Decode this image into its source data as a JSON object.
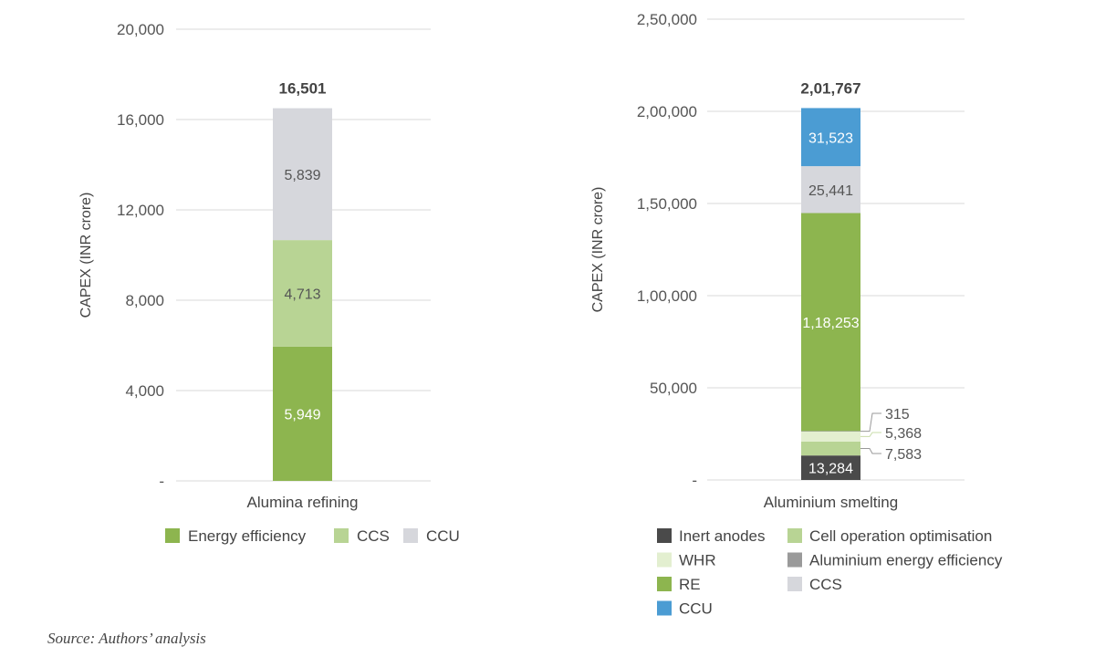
{
  "source": "Source: Authors’ analysis",
  "colors": {
    "energy_efficiency": "#8db54f",
    "ccs_left": "#b8d494",
    "ccu_left": "#d6d7dc",
    "inert_anodes": "#4a4a4a",
    "cell_operation_optimisation": "#b8d494",
    "whr": "#e3efd0",
    "aluminium_energy_efficiency": "#9a9a9a",
    "re": "#8db54f",
    "ccs_right": "#d6d7dc",
    "ccu_right": "#4b9cd3"
  },
  "chart_data": [
    {
      "type": "bar",
      "stacked": true,
      "ylabel": "CAPEX (INR crore)",
      "ylim": [
        0,
        20000
      ],
      "yticks": [
        "-",
        "4,000",
        "8,000",
        "12,000",
        "16,000",
        "20,000"
      ],
      "categories": [
        "Alumina refining"
      ],
      "total": "16,501",
      "series": [
        {
          "name": "Energy efficiency",
          "values": [
            5949
          ],
          "label": "5,949",
          "color": "#8db54f",
          "label_color": "#ffffff"
        },
        {
          "name": "CCS",
          "values": [
            4713
          ],
          "label": "4,713",
          "color": "#b8d494",
          "label_color": "#555555"
        },
        {
          "name": "CCU",
          "values": [
            5839
          ],
          "label": "5,839",
          "color": "#d6d7dc",
          "label_color": "#555555"
        }
      ],
      "legend": [
        {
          "name": "Energy efficiency",
          "color": "#8db54f"
        },
        {
          "name": "CCS",
          "color": "#b8d494"
        },
        {
          "name": "CCU",
          "color": "#d6d7dc"
        }
      ],
      "grid": true,
      "legend_position": "bottom"
    },
    {
      "type": "bar",
      "stacked": true,
      "ylabel": "CAPEX (INR crore)",
      "ylim": [
        0,
        250000
      ],
      "yticks": [
        "-",
        "50,000",
        "1,00,000",
        "1,50,000",
        "2,00,000",
        "2,50,000"
      ],
      "categories": [
        "Aluminium smelting"
      ],
      "total": "2,01,767",
      "series": [
        {
          "name": "Inert anodes",
          "values": [
            13284
          ],
          "label": "13,284",
          "color": "#4a4a4a",
          "label_color": "#ffffff",
          "label_mode": "inside"
        },
        {
          "name": "Cell operation optimisation",
          "values": [
            7583
          ],
          "label": "7,583",
          "color": "#b8d494",
          "label_mode": "callout"
        },
        {
          "name": "WHR",
          "values": [
            5368
          ],
          "label": "5,368",
          "color": "#e3efd0",
          "label_mode": "callout"
        },
        {
          "name": "Aluminium energy efficiency",
          "values": [
            315
          ],
          "label": "315",
          "color": "#9a9a9a",
          "label_mode": "callout"
        },
        {
          "name": "RE",
          "values": [
            118253
          ],
          "label": "1,18,253",
          "color": "#8db54f",
          "label_color": "#ffffff",
          "label_mode": "inside"
        },
        {
          "name": "CCS",
          "values": [
            25441
          ],
          "label": "25,441",
          "color": "#d6d7dc",
          "label_color": "#555555",
          "label_mode": "inside"
        },
        {
          "name": "CCU",
          "values": [
            31523
          ],
          "label": "31,523",
          "color": "#4b9cd3",
          "label_color": "#ffffff",
          "label_mode": "inside"
        }
      ],
      "legend": [
        {
          "name": "Inert anodes",
          "color": "#4a4a4a"
        },
        {
          "name": "Cell operation optimisation",
          "color": "#b8d494"
        },
        {
          "name": "WHR",
          "color": "#e3efd0"
        },
        {
          "name": "Aluminium energy efficiency",
          "color": "#9a9a9a"
        },
        {
          "name": "RE",
          "color": "#8db54f"
        },
        {
          "name": "CCS",
          "color": "#d6d7dc"
        },
        {
          "name": "CCU",
          "color": "#4b9cd3"
        }
      ],
      "grid": true,
      "legend_position": "bottom"
    }
  ]
}
